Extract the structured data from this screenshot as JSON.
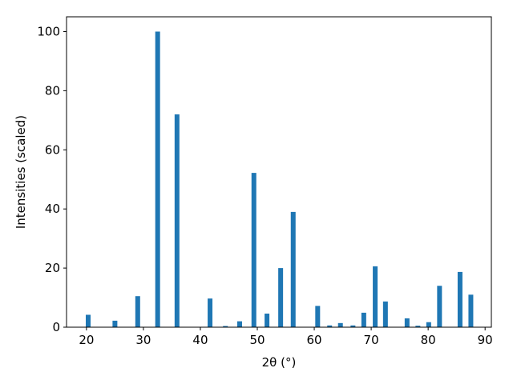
{
  "chart_data": {
    "type": "bar",
    "xlabel": "2θ (°)",
    "ylabel": "Intensities (scaled)",
    "x": [
      20.3,
      25.0,
      29.0,
      32.5,
      35.9,
      41.7,
      44.4,
      46.9,
      49.4,
      51.7,
      54.1,
      56.3,
      60.6,
      62.7,
      64.6,
      66.8,
      68.7,
      70.7,
      72.5,
      76.3,
      78.2,
      80.1,
      82.0,
      85.6,
      87.5
    ],
    "values": [
      4.2,
      2.2,
      10.5,
      100,
      72,
      9.7,
      0.4,
      2,
      52.2,
      4.6,
      20,
      39,
      7.2,
      0.6,
      1.4,
      0.6,
      4.9,
      20.6,
      8.7,
      3,
      0.5,
      1.7,
      14,
      18.7,
      11
    ],
    "color": "#1f77b4",
    "xlim": [
      16.5,
      91.1
    ],
    "xticks": [
      20,
      30,
      40,
      50,
      60,
      70,
      80,
      90
    ],
    "ylim": [
      0,
      105
    ],
    "yticks": [
      0,
      20,
      40,
      60,
      80,
      100
    ]
  }
}
